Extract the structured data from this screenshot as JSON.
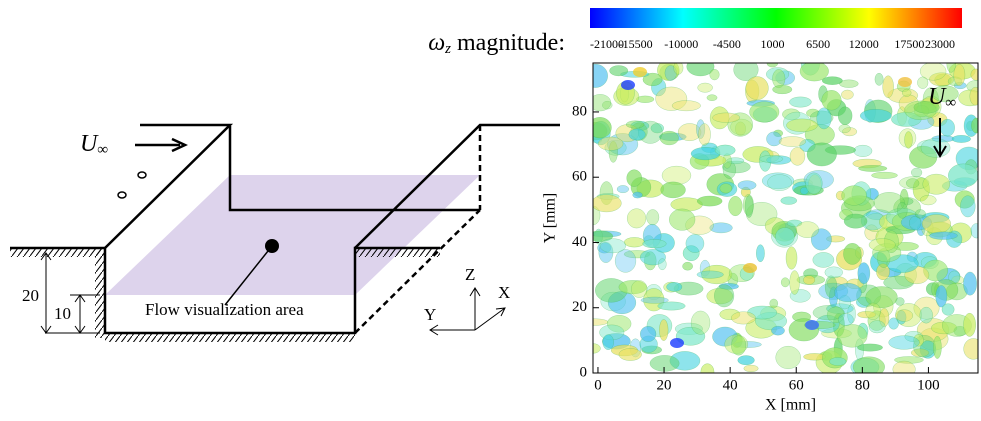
{
  "diagram": {
    "inlet_symbol": "U",
    "inlet_subscript": "∞",
    "area_label": "Flow visualization area",
    "depth_outer": "20",
    "depth_inner": "10",
    "axis_z": "Z",
    "axis_x": "X",
    "axis_y": "Y"
  },
  "chart_data": {
    "type": "contour",
    "colorbar_label": {
      "symbol": "ω",
      "subscript": "z",
      "text": "magnitude:"
    },
    "clim": [
      -21000,
      23000
    ],
    "cticks": [
      -21000,
      -15500,
      -10000,
      -4500,
      1000,
      6500,
      12000,
      17500,
      23000
    ],
    "colormap": [
      "#0000ff",
      "#00ffff",
      "#00ff00",
      "#ffff00",
      "#ff0000"
    ],
    "xlabel": "X [mm]",
    "ylabel": "Y [mm]",
    "xlim": [
      -1.5,
      115
    ],
    "ylim": [
      0,
      95
    ],
    "xticks": [
      0,
      20,
      40,
      60,
      80,
      100
    ],
    "yticks": [
      0,
      20,
      40,
      60,
      80
    ],
    "flow_symbol": "U",
    "flow_subscript": "∞"
  }
}
